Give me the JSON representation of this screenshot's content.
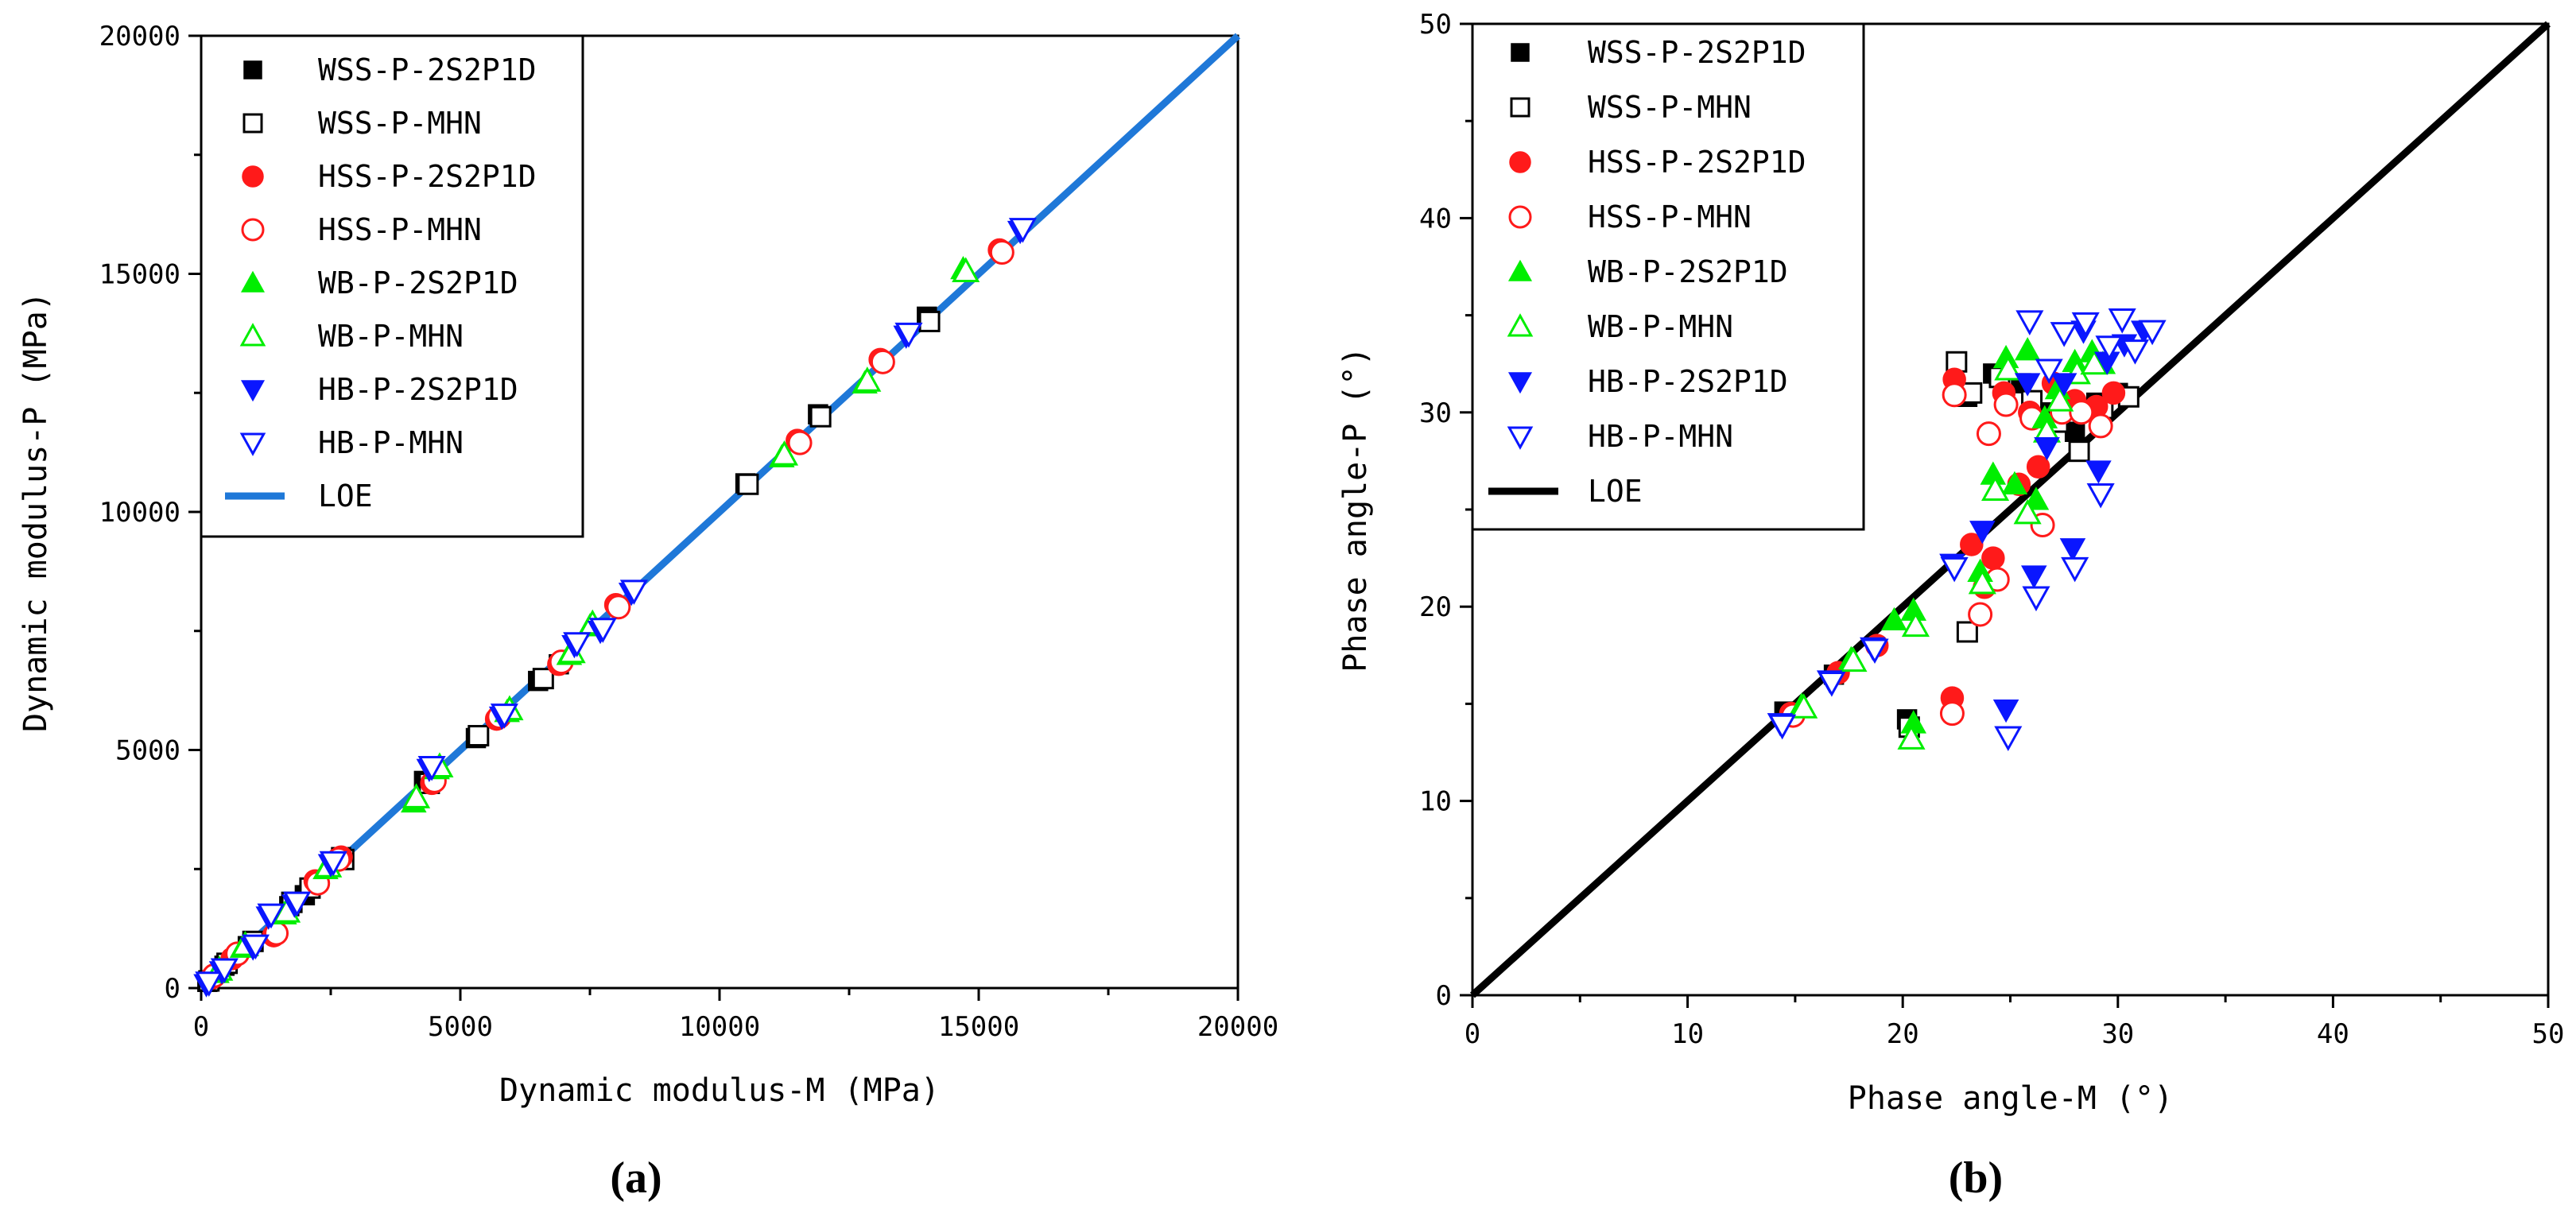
{
  "chart_data": [
    {
      "type": "scatter",
      "panel_label": "(a)",
      "xlabel": "Dynamic modulus-M (MPa)",
      "ylabel": "Dynamic modulus-P (MPa)",
      "xlim": [
        0,
        20000
      ],
      "ylim": [
        0,
        20000
      ],
      "xticks": [
        0,
        5000,
        10000,
        15000,
        20000
      ],
      "yticks": [
        0,
        5000,
        10000,
        15000,
        20000
      ],
      "legend_position": "top-left",
      "reference_line": {
        "name": "LOE",
        "color": "#1f78d8",
        "from": [
          0,
          0
        ],
        "to": [
          20000,
          20000
        ]
      },
      "series": [
        {
          "name": "WSS-P-2S2P1D",
          "marker": "square",
          "filled": true,
          "color": "#000000",
          "points": [
            [
              120,
              130
            ],
            [
              450,
              470
            ],
            [
              900,
              880
            ],
            [
              1700,
              1720
            ],
            [
              2000,
              1950
            ],
            [
              2700,
              2750
            ],
            [
              4300,
              4350
            ],
            [
              5300,
              5250
            ],
            [
              6500,
              6450
            ],
            [
              6900,
              6800
            ],
            [
              10500,
              10600
            ],
            [
              11900,
              12050
            ],
            [
              14000,
              14100
            ]
          ]
        },
        {
          "name": "WSS-P-MHN",
          "marker": "square",
          "filled": false,
          "color": "#000000",
          "points": [
            [
              150,
              150
            ],
            [
              500,
              520
            ],
            [
              1000,
              980
            ],
            [
              1750,
              1800
            ],
            [
              2100,
              2100
            ],
            [
              2750,
              2700
            ],
            [
              4400,
              4300
            ],
            [
              5350,
              5300
            ],
            [
              6600,
              6500
            ],
            [
              10550,
              10580
            ],
            [
              11950,
              12000
            ],
            [
              14050,
              14000
            ]
          ]
        },
        {
          "name": "HSS-P-2S2P1D",
          "marker": "circle",
          "filled": true,
          "color": "#ff1a1a",
          "points": [
            [
              200,
              210
            ],
            [
              600,
              620
            ],
            [
              1400,
              1100
            ],
            [
              2200,
              2250
            ],
            [
              2700,
              2750
            ],
            [
              4450,
              4300
            ],
            [
              5700,
              5650
            ],
            [
              6900,
              6800
            ],
            [
              8000,
              8050
            ],
            [
              11500,
              11500
            ],
            [
              13100,
              13200
            ],
            [
              15400,
              15500
            ]
          ]
        },
        {
          "name": "HSS-P-MHN",
          "marker": "circle",
          "filled": false,
          "color": "#ff1a1a",
          "points": [
            [
              250,
              260
            ],
            [
              700,
              720
            ],
            [
              1450,
              1150
            ],
            [
              2250,
              2200
            ],
            [
              2650,
              2700
            ],
            [
              4500,
              4350
            ],
            [
              5750,
              5700
            ],
            [
              6950,
              6850
            ],
            [
              8050,
              8000
            ],
            [
              11550,
              11450
            ],
            [
              13150,
              13150
            ],
            [
              15450,
              15450
            ]
          ]
        },
        {
          "name": "WB-P-2S2P1D",
          "marker": "triangle-up",
          "filled": true,
          "color": "#00ee00",
          "points": [
            [
              300,
              320
            ],
            [
              800,
              850
            ],
            [
              1600,
              1550
            ],
            [
              2400,
              2500
            ],
            [
              4100,
              3900
            ],
            [
              4550,
              4600
            ],
            [
              5900,
              5800
            ],
            [
              7100,
              7000
            ],
            [
              7500,
              7600
            ],
            [
              11200,
              11150
            ],
            [
              12800,
              12700
            ],
            [
              14700,
              15100
            ]
          ]
        },
        {
          "name": "WB-P-MHN",
          "marker": "triangle-up",
          "filled": false,
          "color": "#00ee00",
          "points": [
            [
              350,
              380
            ],
            [
              850,
              900
            ],
            [
              1650,
              1600
            ],
            [
              2450,
              2550
            ],
            [
              4150,
              4000
            ],
            [
              4600,
              4650
            ],
            [
              5950,
              5850
            ],
            [
              7150,
              7050
            ],
            [
              7550,
              7650
            ],
            [
              11250,
              11200
            ],
            [
              12850,
              12750
            ],
            [
              14750,
              15050
            ]
          ]
        },
        {
          "name": "HB-P-2S2P1D",
          "marker": "triangle-down",
          "filled": true,
          "color": "#0a16ff",
          "points": [
            [
              100,
              80
            ],
            [
              400,
              350
            ],
            [
              1000,
              850
            ],
            [
              1300,
              1500
            ],
            [
              1800,
              1750
            ],
            [
              2500,
              2600
            ],
            [
              4400,
              4600
            ],
            [
              5800,
              5700
            ],
            [
              7200,
              7200
            ],
            [
              7700,
              7500
            ],
            [
              8300,
              8300
            ],
            [
              13600,
              13700
            ],
            [
              15800,
              15900
            ]
          ]
        },
        {
          "name": "HB-P-MHN",
          "marker": "triangle-down",
          "filled": false,
          "color": "#0a16ff",
          "points": [
            [
              150,
              120
            ],
            [
              450,
              400
            ],
            [
              1050,
              900
            ],
            [
              1350,
              1550
            ],
            [
              1850,
              1800
            ],
            [
              2550,
              2650
            ],
            [
              4450,
              4650
            ],
            [
              5850,
              5750
            ],
            [
              7250,
              7250
            ],
            [
              7750,
              7550
            ],
            [
              8350,
              8350
            ],
            [
              13650,
              13750
            ],
            [
              15850,
              15950
            ]
          ]
        }
      ]
    },
    {
      "type": "scatter",
      "panel_label": "(b)",
      "xlabel": "Phase angle-M (°)",
      "ylabel": "Phase angle-P (°)",
      "xlim": [
        0,
        50
      ],
      "ylim": [
        0,
        50
      ],
      "xticks": [
        0,
        10,
        20,
        30,
        40,
        50
      ],
      "yticks": [
        0,
        10,
        20,
        30,
        40,
        50
      ],
      "legend_position": "top-left",
      "reference_line": {
        "name": "LOE",
        "color": "#000000",
        "from": [
          0,
          0
        ],
        "to": [
          50,
          50
        ]
      },
      "series": [
        {
          "name": "WSS-P-2S2P1D",
          "marker": "square",
          "filled": true,
          "color": "#000000",
          "points": [
            [
              14.5,
              14.6
            ],
            [
              16.8,
              16.5
            ],
            [
              20.2,
              14.2
            ],
            [
              23.0,
              30.8
            ],
            [
              24.2,
              32.0
            ],
            [
              25.5,
              31.5
            ],
            [
              26.8,
              30.0
            ],
            [
              28.0,
              29.0
            ],
            [
              29.0,
              30.5
            ],
            [
              30.0,
              31.0
            ]
          ]
        },
        {
          "name": "WSS-P-MHN",
          "marker": "square",
          "filled": false,
          "color": "#000000",
          "points": [
            [
              20.3,
              13.8
            ],
            [
              22.5,
              32.6
            ],
            [
              23.0,
              18.7
            ],
            [
              23.2,
              31.0
            ],
            [
              24.5,
              31.8
            ],
            [
              26.0,
              30.6
            ],
            [
              27.2,
              29.5
            ],
            [
              28.2,
              28.0
            ],
            [
              29.3,
              30.2
            ],
            [
              30.5,
              30.8
            ]
          ]
        },
        {
          "name": "HSS-P-2S2P1D",
          "marker": "circle",
          "filled": true,
          "color": "#ff1a1a",
          "points": [
            [
              14.8,
              14.5
            ],
            [
              17.0,
              16.6
            ],
            [
              18.8,
              18.0
            ],
            [
              22.3,
              15.3
            ],
            [
              22.4,
              31.7
            ],
            [
              23.2,
              23.2
            ],
            [
              23.8,
              21.0
            ],
            [
              24.2,
              22.5
            ],
            [
              24.7,
              31.0
            ],
            [
              25.4,
              26.3
            ],
            [
              25.9,
              30.0
            ],
            [
              26.3,
              27.2
            ],
            [
              27.0,
              31.5
            ],
            [
              28.0,
              30.6
            ],
            [
              29.0,
              30.3
            ],
            [
              29.8,
              31.0
            ]
          ]
        },
        {
          "name": "HSS-P-MHN",
          "marker": "circle",
          "filled": false,
          "color": "#ff1a1a",
          "points": [
            [
              14.9,
              14.4
            ],
            [
              22.3,
              14.5
            ],
            [
              22.4,
              30.9
            ],
            [
              23.6,
              19.6
            ],
            [
              24.0,
              28.9
            ],
            [
              24.4,
              21.4
            ],
            [
              24.8,
              30.4
            ],
            [
              26.0,
              29.7
            ],
            [
              26.5,
              24.2
            ],
            [
              27.4,
              30.0
            ],
            [
              28.3,
              30.0
            ],
            [
              29.2,
              29.3
            ]
          ]
        },
        {
          "name": "WB-P-2S2P1D",
          "marker": "triangle-up",
          "filled": true,
          "color": "#00ee00",
          "points": [
            [
              15.3,
              14.9
            ],
            [
              17.6,
              17.3
            ],
            [
              19.6,
              19.3
            ],
            [
              20.5,
              14.0
            ],
            [
              20.5,
              19.8
            ],
            [
              23.6,
              21.8
            ],
            [
              24.2,
              26.8
            ],
            [
              24.8,
              32.8
            ],
            [
              25.2,
              26.3
            ],
            [
              25.8,
              33.2
            ],
            [
              26.2,
              25.5
            ],
            [
              26.6,
              29.7
            ],
            [
              27.2,
              31.2
            ],
            [
              28.0,
              32.6
            ],
            [
              28.8,
              33.1
            ],
            [
              29.3,
              32.5
            ]
          ]
        },
        {
          "name": "WB-P-MHN",
          "marker": "triangle-up",
          "filled": false,
          "color": "#00ee00",
          "points": [
            [
              15.4,
              14.8
            ],
            [
              17.7,
              17.2
            ],
            [
              20.4,
              13.2
            ],
            [
              20.6,
              19.0
            ],
            [
              23.7,
              21.2
            ],
            [
              24.3,
              26.0
            ],
            [
              24.9,
              32.2
            ],
            [
              25.8,
              24.8
            ],
            [
              26.7,
              29.0
            ],
            [
              27.3,
              30.6
            ],
            [
              28.1,
              32.0
            ],
            [
              28.9,
              32.5
            ]
          ]
        },
        {
          "name": "HB-P-2S2P1D",
          "marker": "triangle-down",
          "filled": true,
          "color": "#0a16ff",
          "points": [
            [
              14.3,
              14.0
            ],
            [
              16.6,
              16.2
            ],
            [
              18.6,
              17.9
            ],
            [
              22.3,
              22.2
            ],
            [
              23.7,
              23.9
            ],
            [
              24.8,
              14.7
            ],
            [
              25.8,
              31.5
            ],
            [
              26.1,
              21.6
            ],
            [
              26.7,
              28.2
            ],
            [
              27.5,
              31.5
            ],
            [
              27.9,
              23.0
            ],
            [
              28.4,
              34.2
            ],
            [
              29.1,
              27.0
            ],
            [
              29.5,
              32.6
            ],
            [
              30.3,
              33.5
            ],
            [
              31.2,
              34.2
            ]
          ]
        },
        {
          "name": "HB-P-MHN",
          "marker": "triangle-down",
          "filled": false,
          "color": "#0a16ff",
          "points": [
            [
              14.4,
              13.9
            ],
            [
              16.7,
              16.1
            ],
            [
              18.7,
              17.8
            ],
            [
              22.4,
              22.0
            ],
            [
              24.9,
              13.3
            ],
            [
              25.9,
              34.7
            ],
            [
              26.2,
              20.5
            ],
            [
              26.8,
              32.2
            ],
            [
              27.5,
              34.1
            ],
            [
              28.0,
              22.0
            ],
            [
              28.5,
              34.6
            ],
            [
              29.2,
              25.8
            ],
            [
              29.6,
              33.4
            ],
            [
              30.2,
              34.8
            ],
            [
              30.8,
              33.2
            ],
            [
              31.6,
              34.2
            ]
          ]
        }
      ]
    }
  ]
}
